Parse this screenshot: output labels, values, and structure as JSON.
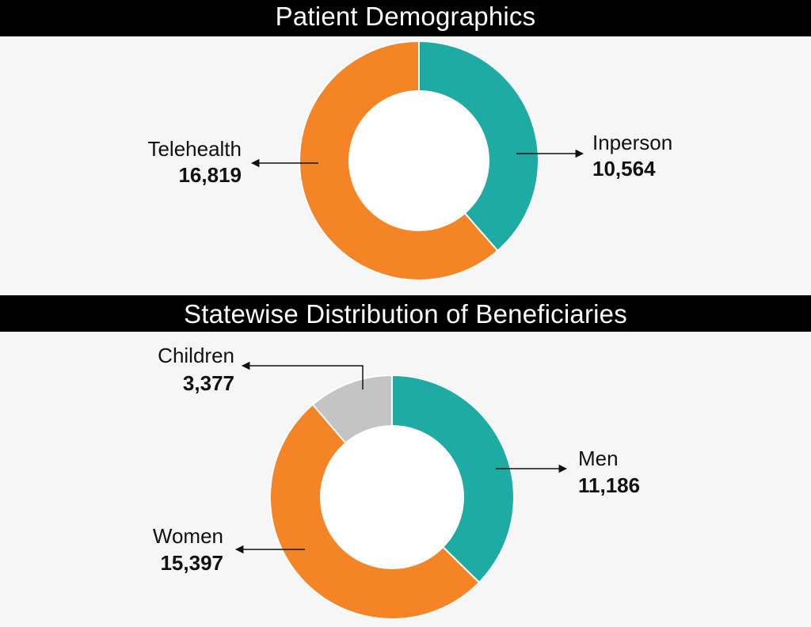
{
  "charts": {
    "chart1_title": "Patient Demographics",
    "chart2_title": "Statewise Distribution of Beneficiaries"
  },
  "colors": {
    "teal": "#1eaba4",
    "orange": "#f58426",
    "gray": "#c4c4c4",
    "hole": "#ffffff"
  },
  "chart_data": [
    {
      "type": "pie",
      "title": "Patient Demographics",
      "categories": [
        "Inperson",
        "Telehealth"
      ],
      "values": [
        10564,
        16819
      ],
      "value_labels": [
        "10,564",
        "16,819"
      ],
      "colors": [
        "#1eaba4",
        "#f58426"
      ]
    },
    {
      "type": "pie",
      "title": "Statewise Distribution of Beneficiaries",
      "categories": [
        "Men",
        "Women",
        "Children"
      ],
      "values": [
        11186,
        15397,
        3377
      ],
      "value_labels": [
        "11,186",
        "15,397",
        "3,377"
      ],
      "colors": [
        "#1eaba4",
        "#f58426",
        "#c4c4c4"
      ]
    }
  ]
}
